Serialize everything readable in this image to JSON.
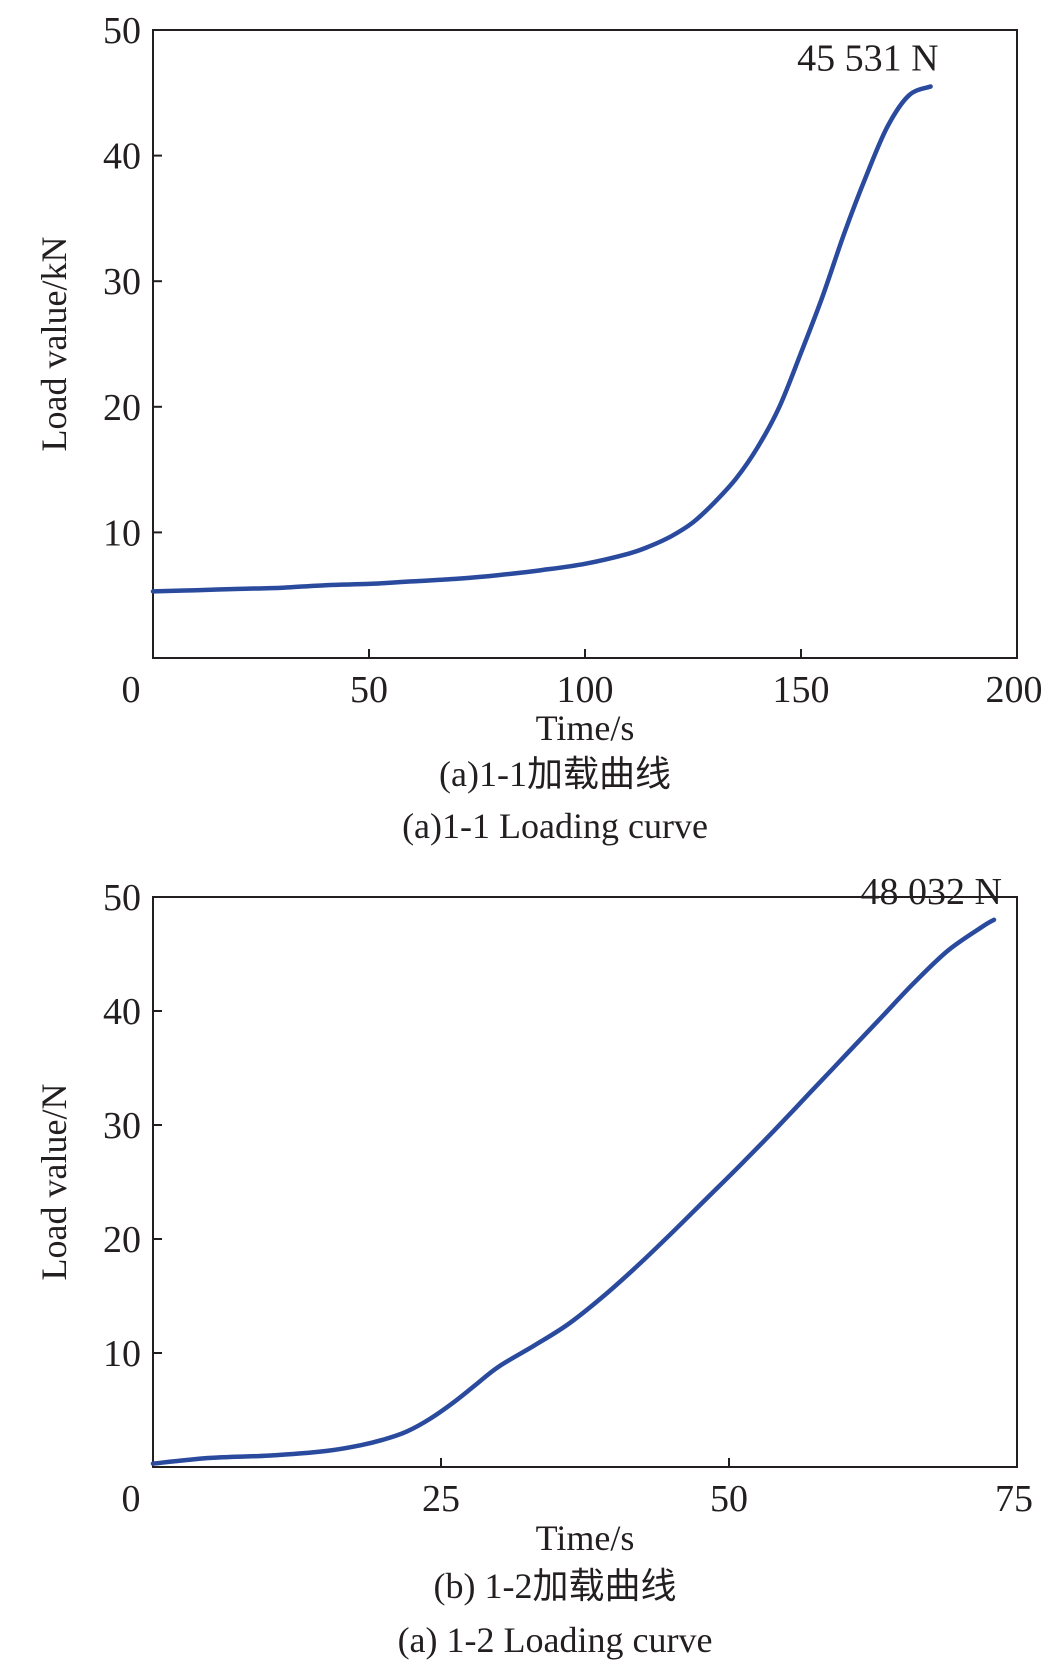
{
  "colors": {
    "series": "#2a4a9e",
    "axis": "#231f20"
  },
  "chart_data": [
    {
      "type": "line",
      "title": "",
      "xlabel": "Time/s",
      "ylabel": "Load value/kN",
      "xlim": [
        0,
        200
      ],
      "ylim": [
        0,
        50
      ],
      "xticks": [
        0,
        50,
        100,
        150,
        200
      ],
      "yticks": [
        10,
        20,
        30,
        40,
        50
      ],
      "grid": false,
      "legend": "none",
      "caption_cn": "(a)1-1加载曲线",
      "caption_en": "(a)1-1 Loading curve",
      "annotation": "45 531 N",
      "series": [
        {
          "x": [
            0,
            10,
            20,
            30,
            40,
            50,
            60,
            70,
            80,
            90,
            100,
            110,
            115,
            120,
            125,
            130,
            135,
            140,
            145,
            150,
            155,
            160,
            165,
            170,
            175,
            180
          ],
          "y": [
            5.3,
            5.4,
            5.5,
            5.6,
            5.8,
            5.9,
            6.1,
            6.3,
            6.6,
            7.0,
            7.5,
            8.3,
            8.9,
            9.7,
            10.8,
            12.4,
            14.3,
            16.8,
            20.0,
            24.3,
            28.8,
            33.8,
            38.3,
            42.3,
            44.8,
            45.5
          ]
        }
      ]
    },
    {
      "type": "line",
      "title": "",
      "xlabel": "Time/s",
      "ylabel": "Load value/N",
      "xlim": [
        0,
        75
      ],
      "ylim": [
        0,
        50
      ],
      "xticks": [
        0,
        25,
        50,
        75
      ],
      "yticks": [
        10,
        20,
        30,
        40,
        50
      ],
      "grid": false,
      "legend": "none",
      "caption_cn": "(b) 1-2加载曲线",
      "caption_en": "(a) 1-2 Loading curve",
      "annotation": "48 032 N",
      "series": [
        {
          "x": [
            0,
            5,
            10,
            15,
            18,
            20,
            22,
            24,
            26,
            28,
            30,
            33,
            36,
            39,
            42,
            45,
            48,
            51,
            54,
            57,
            60,
            63,
            66,
            69,
            72,
            73
          ],
          "y": [
            0.3,
            0.8,
            1.0,
            1.4,
            1.9,
            2.4,
            3.1,
            4.2,
            5.6,
            7.2,
            8.8,
            10.6,
            12.5,
            14.9,
            17.6,
            20.5,
            23.5,
            26.5,
            29.6,
            32.8,
            36.0,
            39.2,
            42.4,
            45.3,
            47.4,
            48.0
          ]
        }
      ]
    }
  ]
}
